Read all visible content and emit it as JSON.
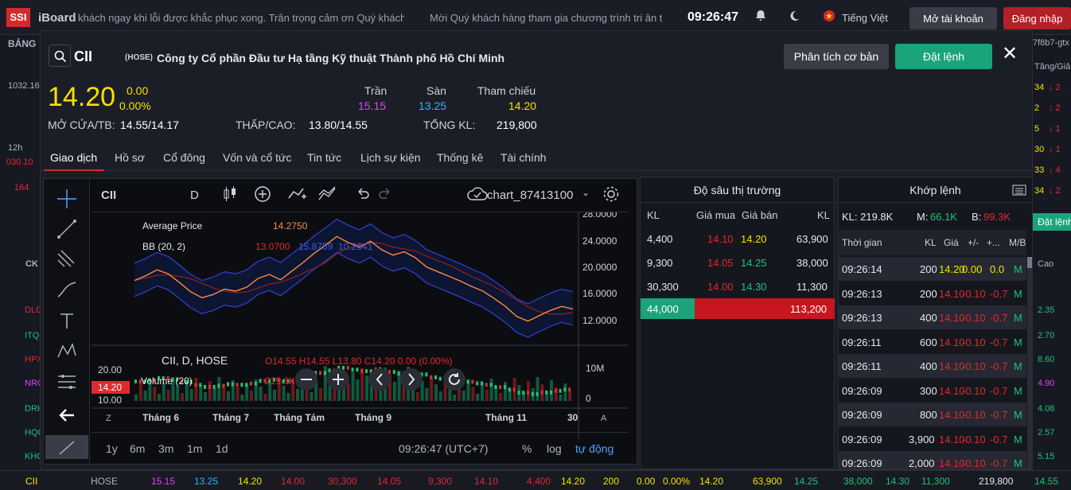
{
  "topbar": {
    "logo": "SSI",
    "app_name": "iBoard",
    "ticker1": "khách ngay khi lỗi được khắc phục xong. Trân trọng cảm ơn Quý khách!",
    "ticker2": "Mời Quý khách hàng tham gia chương trình tri ân t",
    "clock": "09:26:47",
    "language": "Tiếng Việt",
    "open_account": "Mở tài khoản",
    "login": "Đăng nhập",
    "icons": [
      "bell-icon",
      "moon-icon",
      "flag-icon"
    ]
  },
  "background_left": {
    "tab_label": "BẢNG",
    "index_value": "1032.16",
    "time_label": "12h",
    "val1": "030.10",
    "val2": "164",
    "header": "CK",
    "symbols": [
      "DLG",
      "ITQ",
      "HPX",
      "NRC",
      "DRH",
      "HQC",
      "KHG"
    ]
  },
  "background_right": {
    "id": "7f8b7-gtx",
    "header": "Tăng/Giả",
    "values": [
      "34",
      "2",
      "5",
      "30",
      "33",
      "34"
    ],
    "changes": [
      "↓ 2",
      "↓ 2",
      "↓ 1",
      "↓ 1",
      "↓ 4",
      "↓ 2"
    ],
    "order_btn": "Đặt lệnh",
    "col_header": "Cao",
    "highs": [
      "2.35",
      "2.70",
      "8.60",
      "4.90",
      "4.08",
      "2.57",
      "5.15"
    ]
  },
  "header": {
    "symbol": "CII",
    "exchange": "(HOSE)",
    "company": "Công ty Cổ phần Đầu tư Hạ tầng Kỹ thuật Thành phố Hồ Chí Minh",
    "analysis_btn": "Phân tích cơ bản",
    "order_btn": "Đặt lệnh",
    "close": "✕"
  },
  "quote": {
    "price": "14.20",
    "change": "0.00",
    "change_pct": "0.00%",
    "ceiling_label": "Trần",
    "ceiling": "15.15",
    "floor_label": "Sàn",
    "floor": "13.25",
    "ref_label": "Tham chiếu",
    "ref": "14.20",
    "open_avg_label": "MỞ CỬA/TB:",
    "open_avg": "14.55/14.17",
    "low_high_label": "THẤP/CAO:",
    "low_high": "13.80/14.55",
    "volume_label": "TỔNG KL:",
    "volume": "219,800"
  },
  "tabs": [
    "Giao dịch",
    "Hồ sơ",
    "Cổ đông",
    "Vốn và cổ tức",
    "Tin tức",
    "Lịch sự kiện",
    "Thống kê",
    "Tài chính"
  ],
  "chart": {
    "symbol": "CII",
    "interval": "D",
    "chart_name": "chart_87413100",
    "avg_price_label": "Average Price",
    "avg_price_value": "14.2750",
    "bb_label": "BB (20, 2)",
    "bb_values": [
      "13.0700",
      "15.8759",
      "10.2641"
    ],
    "symbol_info": "CII, D, HOSE",
    "ohlc": "O14.55 H14.55 L13.80 C14.20 0.00 (0.00%)",
    "volume_label": "Volume (20)",
    "volume_value": "219.8K",
    "price_axis": [
      "28.0000",
      "24.0000",
      "20.0000",
      "16.0000",
      "12.0000"
    ],
    "vol_axis": [
      "10M",
      "0"
    ],
    "left_axis": [
      "20.00",
      "14.20",
      "10.00"
    ],
    "time_axis": [
      "Tháng 6",
      "Tháng 7",
      "Tháng Tám",
      "Tháng 9",
      "Tháng 11",
      "30"
    ],
    "ranges": [
      "1y",
      "6m",
      "3m",
      "1m",
      "1d"
    ],
    "time": "09:26:47 (UTC+7)",
    "pct": "%",
    "log": "log",
    "auto": "tự động",
    "avg_price_series": [
      18.5,
      19.2,
      20.1,
      19.5,
      18.2,
      16.8,
      15.9,
      16.4,
      17.2,
      16.9,
      17.5,
      18.8,
      19.4,
      18.6,
      19.9,
      21.2,
      22.6,
      23.8,
      25.1,
      24.2,
      23.5,
      24.4,
      23.1,
      22.3,
      22.8,
      21.9,
      20.5,
      19.8,
      19.1,
      18.4,
      17.6,
      16.9,
      15.8,
      14.6,
      13.1,
      12.4,
      13.2,
      14.0,
      14.6,
      14.2
    ]
  },
  "depth": {
    "title": "Độ sâu thị trường",
    "headers": [
      "KL",
      "Giá mua",
      "Giá bán",
      "KL"
    ],
    "rows": [
      {
        "bid_vol": "4,400",
        "bid": "14.10",
        "ask": "14.20",
        "ask_vol": "63,900"
      },
      {
        "bid_vol": "9,300",
        "bid": "14.05",
        "ask": "14.25",
        "ask_vol": "38,000"
      },
      {
        "bid_vol": "30,300",
        "bid": "14.00",
        "ask": "14.30",
        "ask_vol": "11,300"
      }
    ],
    "total_bid": "44,000",
    "total_ask": "113,200"
  },
  "match": {
    "title": "Khớp lệnh",
    "kl_label": "KL: 219.8K",
    "m_label": "M:",
    "m_value": "66.1K",
    "b_label": "B:",
    "b_value": "99.3K",
    "headers": [
      "Thời gian",
      "KL",
      "Giá",
      "+/-",
      "+...",
      "M/B"
    ],
    "rows": [
      {
        "time": "09:26:14",
        "vol": "200",
        "price": "14.20",
        "chg": "0.00",
        "pct": "0.0",
        "side": "M"
      },
      {
        "time": "09:26:13",
        "vol": "200",
        "price": "14.10",
        "chg": "-0.10",
        "pct": "-0.7",
        "side": "M"
      },
      {
        "time": "09:26:13",
        "vol": "400",
        "price": "14.10",
        "chg": "-0.10",
        "pct": "-0.7",
        "side": "M"
      },
      {
        "time": "09:26:11",
        "vol": "600",
        "price": "14.10",
        "chg": "-0.10",
        "pct": "-0.7",
        "side": "M"
      },
      {
        "time": "09:26:11",
        "vol": "400",
        "price": "14.10",
        "chg": "-0.10",
        "pct": "-0.7",
        "side": "M"
      },
      {
        "time": "09:26:09",
        "vol": "300",
        "price": "14.10",
        "chg": "-0.10",
        "pct": "-0.7",
        "side": "M"
      },
      {
        "time": "09:26:09",
        "vol": "800",
        "price": "14.10",
        "chg": "-0.10",
        "pct": "-0.7",
        "side": "M"
      },
      {
        "time": "09:26:09",
        "vol": "3,900",
        "price": "14.10",
        "chg": "-0.10",
        "pct": "-0.7",
        "side": "M"
      },
      {
        "time": "09:26:09",
        "vol": "2,000",
        "price": "14.10",
        "chg": "-0.10",
        "pct": "-0.7",
        "side": "M"
      }
    ]
  },
  "footer": {
    "cells": [
      "CII",
      "HOSE",
      "15.15",
      "13.25",
      "14.20",
      "14.00",
      "30,300",
      "14.05",
      "9,300",
      "14.10",
      "4,400",
      "14.20",
      "200",
      "0.00",
      "0.00%",
      "14.20",
      "63,900",
      "14.25",
      "38,000",
      "14.30",
      "11,300",
      "219,800",
      "14.55"
    ]
  },
  "colors": {
    "up": "#1ec27a",
    "down": "#e0292f",
    "ref": "#f7e100",
    "ceiling": "#e040fb",
    "floor": "#2bb6f5",
    "accent_green": "#1aa47a",
    "accent_red": "#b32025"
  }
}
